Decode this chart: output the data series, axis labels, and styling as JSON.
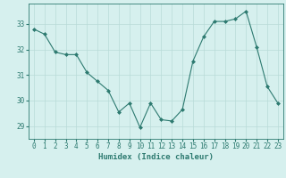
{
  "x": [
    0,
    1,
    2,
    3,
    4,
    5,
    6,
    7,
    8,
    9,
    10,
    11,
    12,
    13,
    14,
    15,
    16,
    17,
    18,
    19,
    20,
    21,
    22,
    23
  ],
  "y": [
    32.8,
    32.6,
    31.9,
    31.8,
    31.8,
    31.1,
    30.75,
    30.4,
    29.55,
    29.9,
    28.95,
    29.9,
    29.25,
    29.2,
    29.65,
    31.55,
    32.5,
    33.1,
    33.1,
    33.2,
    33.5,
    32.1,
    30.55,
    29.9
  ],
  "line_color": "#2d7a70",
  "marker_color": "#2d7a70",
  "bg_color": "#d6f0ee",
  "grid_color": "#b8dbd8",
  "xlabel": "Humidex (Indice chaleur)",
  "xlabel_fontsize": 6.5,
  "tick_fontsize": 5.5,
  "ylim": [
    28.5,
    33.8
  ],
  "xlim": [
    -0.5,
    23.5
  ],
  "yticks": [
    29,
    30,
    31,
    32,
    33
  ],
  "xticks": [
    0,
    1,
    2,
    3,
    4,
    5,
    6,
    7,
    8,
    9,
    10,
    11,
    12,
    13,
    14,
    15,
    16,
    17,
    18,
    19,
    20,
    21,
    22,
    23
  ]
}
